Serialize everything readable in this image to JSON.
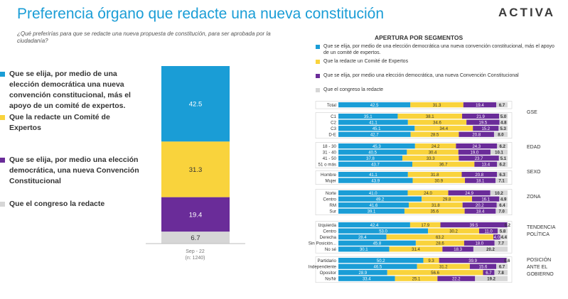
{
  "header": {
    "title": "Preferencia órgano que redacte una nueva constitución",
    "subtitle": "¿Qué preferirías para que se redacte una nueva propuesta de constitución, para ser aprobada por la ciudadanía?",
    "logo": "ACTIVA"
  },
  "colors": {
    "convencion_mixta": "#1a9dd6",
    "comite_expertos": "#f9d33c",
    "convencion_eleccion": "#6a2c99",
    "congreso": "#d6d6d6"
  },
  "legend_left": [
    {
      "key": "convencion_mixta",
      "label": "Que se elija, por medio de una elección democrática una nueva convención constitucional, más el apoyo de un comité de expertos."
    },
    {
      "key": "comite_expertos",
      "label": "Que la redacte un Comité de Expertos"
    },
    {
      "key": "convencion_eleccion",
      "label": "Que se elija, por medio una elección democrática, una nueva Convención Constitucional"
    },
    {
      "key": "congreso",
      "label": "Que el congreso la redacte"
    }
  ],
  "segments_panel": {
    "title": "APERTURA POR SEGMENTOS",
    "legend": [
      {
        "key": "convencion_mixta",
        "label": "Que se elija, por medio de una elección democrática una nueva convención constitucional, más el apoyo de un comité de expertos."
      },
      {
        "key": "comite_expertos",
        "label": "Que la redacte un Comité de Expertos"
      },
      {
        "key": "convencion_eleccion",
        "label": "Que se elija, por medio una elección democrática, una nueva Convención Constitucional"
      },
      {
        "key": "congreso",
        "label": "Que el congreso la redacte"
      }
    ]
  },
  "chart_data": [
    {
      "type": "bar",
      "stacked": true,
      "categories": [
        "Sep - 22"
      ],
      "category_note": "(n: 1240)",
      "series": [
        {
          "name": "Que se elija, por medio de una elección democrática una nueva convención constitucional, más el apoyo de un comité de expertos.",
          "values": [
            42.5
          ]
        },
        {
          "name": "Que la redacte un Comité de Expertos",
          "values": [
            31.3
          ]
        },
        {
          "name": "Que se elija, por medio una elección democrática, una nueva Convención Constitucional",
          "values": [
            19.4
          ]
        },
        {
          "name": "Que el congreso la redacte",
          "values": [
            6.7
          ]
        }
      ]
    },
    {
      "type": "bar",
      "orientation": "horizontal",
      "stacked": true,
      "title": "APERTURA POR SEGMENTOS",
      "groups": [
        {
          "label": "",
          "rows": [
            {
              "label": "Total",
              "values": [
                42.5,
                31.3,
                19.4,
                6.7
              ]
            }
          ]
        },
        {
          "label": "GSE",
          "rows": [
            {
              "label": "C1",
              "values": [
                35.1,
                38.1,
                21.9,
                5.0
              ]
            },
            {
              "label": "C2",
              "values": [
                41.1,
                34.6,
                19.5,
                4.8
              ]
            },
            {
              "label": "C3",
              "values": [
                45.1,
                34.4,
                15.2,
                5.3
              ]
            },
            {
              "label": "D-E",
              "values": [
                42.7,
                28.5,
                20.8,
                8.0
              ]
            }
          ]
        },
        {
          "label": "EDAD",
          "rows": [
            {
              "label": "18 - 30",
              "values": [
                45.3,
                24.2,
                24.3,
                6.2
              ]
            },
            {
              "label": "31 - 40",
              "values": [
                40.5,
                30.4,
                19.0,
                10.1
              ]
            },
            {
              "label": "41 - 50",
              "values": [
                37.8,
                33.3,
                23.7,
                5.1
              ]
            },
            {
              "label": "51 o más",
              "values": [
                43.7,
                36.7,
                13.4,
                6.2
              ]
            }
          ]
        },
        {
          "label": "SEXO",
          "rows": [
            {
              "label": "Hombre",
              "values": [
                41.1,
                31.8,
                20.8,
                6.3
              ]
            },
            {
              "label": "Mujer",
              "values": [
                43.9,
                30.9,
                18.1,
                7.1
              ]
            }
          ]
        },
        {
          "label": "ZONA",
          "rows": [
            {
              "label": "Norte",
              "values": [
                41.0,
                24.0,
                24.9,
                10.2
              ]
            },
            {
              "label": "Centro",
              "values": [
                49.2,
                29.8,
                16.1,
                4.9
              ]
            },
            {
              "label": "RM",
              "values": [
                41.6,
                31.8,
                20.2,
                6.4
              ]
            },
            {
              "label": "Sur",
              "values": [
                39.1,
                35.6,
                18.4,
                7.0
              ]
            }
          ]
        },
        {
          "label": "TENDENCIA POLÍTICA",
          "rows": [
            {
              "label": "Izquierda",
              "values": [
                42.4,
                17.9,
                39.5,
                0.2
              ]
            },
            {
              "label": "Centro",
              "values": [
                53.0,
                30.2,
                11.0,
                5.8
              ]
            },
            {
              "label": "Derecha",
              "values": [
                28.4,
                63.2,
                4.0,
                4.4
              ]
            },
            {
              "label": "Sin Posición...",
              "values": [
                45.8,
                28.6,
                18.0,
                7.7
              ]
            },
            {
              "label": "No sé",
              "values": [
                30.1,
                31.4,
                18.3,
                20.2
              ]
            }
          ]
        },
        {
          "label": "POSICIÓN ANTE EL GOBIERNO",
          "rows": [
            {
              "label": "Partidario",
              "values": [
                50.2,
                9.3,
                39.9,
                0.6
              ]
            },
            {
              "label": "Independiente",
              "values": [
                46.5,
                31.2,
                15.6,
                6.7
              ]
            },
            {
              "label": "Opositor",
              "values": [
                28.9,
                56.6,
                6.7,
                7.8
              ]
            },
            {
              "label": "Ns/Nr",
              "values": [
                33.4,
                25.1,
                22.2,
                19.2
              ]
            }
          ]
        }
      ],
      "value_labels": {
        "Total": [
          "42.5",
          "31.3",
          "19.4",
          "6.7"
        ],
        "C1": [
          "35.1",
          "38.1",
          "21.9",
          "5.0"
        ],
        "C2": [
          "41.1",
          "34.6",
          "19.5",
          "4.8"
        ],
        "C3": [
          "45.1",
          "34.4",
          "15.2",
          "5.3"
        ],
        "D-E": [
          "42.7",
          "28.5",
          "20.8",
          "8.0"
        ],
        "18 - 30": [
          "45.3",
          "24.2",
          "24.3",
          "6.2"
        ],
        "31 - 40": [
          "40.5",
          "30.4",
          "19.0",
          "10.1"
        ],
        "41 - 50": [
          "37.8",
          "33.3",
          "23.7",
          "5.1"
        ],
        "51 o más": [
          "43.7",
          "36.7",
          "13.4",
          "6.2"
        ],
        "Hombre": [
          "41.1",
          "31.8",
          "20.8",
          "6.3"
        ],
        "Mujer": [
          "43.9",
          "30.9",
          "18.1",
          "7.1"
        ],
        "Norte": [
          "41.0",
          "24.0",
          "24.9",
          "10.2"
        ],
        "Centro": [
          "49.2",
          "29.8",
          "16.1",
          "4.9"
        ],
        "RM": [
          "41.6",
          "31.8",
          "20.2",
          "6.4"
        ],
        "Sur": [
          "39.1",
          "35.6",
          "18.4",
          "7.0"
        ],
        "Izquierda": [
          "42.4",
          "17.9",
          "39.5",
          "0.2"
        ],
        "Centro ": [
          "53.0",
          "30.2",
          "11.0",
          "5.8"
        ],
        "Derecha": [
          "28.4",
          "63.2",
          "4.0",
          "4.4"
        ],
        "Sin Posición...": [
          "45.8",
          "28.6",
          "18.0",
          "7.7"
        ],
        "No sé": [
          "30.1",
          "31.4",
          "18.3",
          "20.2"
        ],
        "Partidario": [
          "50.2",
          "9.3",
          "39.9",
          "0.6"
        ],
        "Independiente": [
          "46.5",
          "31.2",
          "15.6",
          "6.7"
        ],
        "Opositor": [
          "28.9",
          "56.6",
          "6.7",
          "7.8"
        ],
        "Ns/Nr": [
          "33.4",
          "25.1",
          "22.2",
          "19.2"
        ]
      }
    }
  ]
}
